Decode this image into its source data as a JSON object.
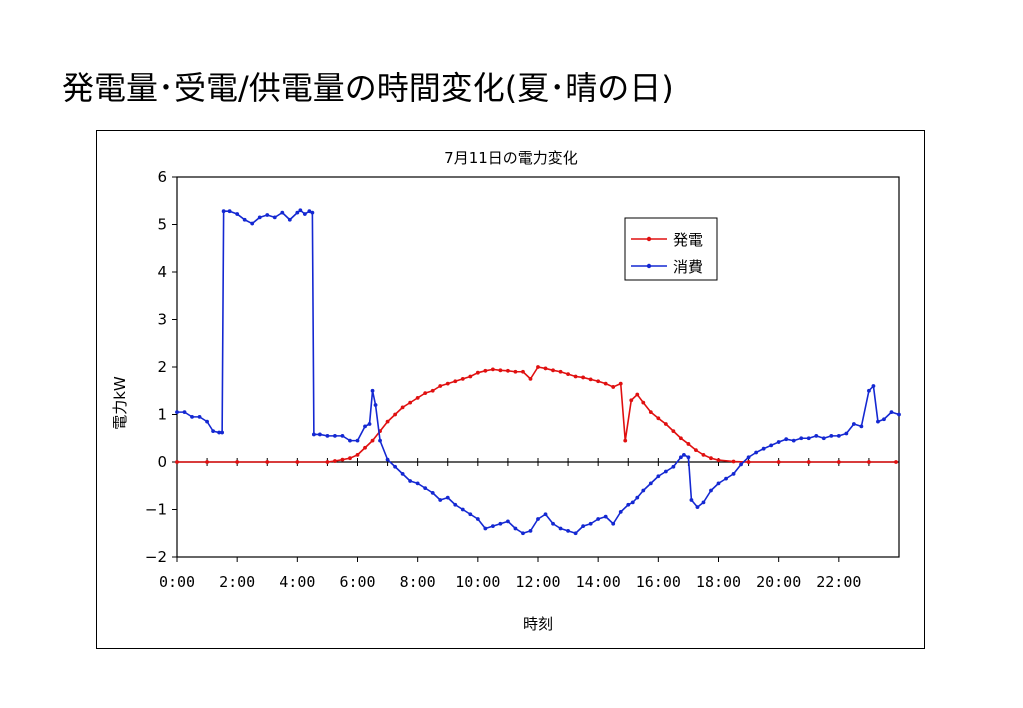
{
  "slide": {
    "title": "発電量･受電/供電量の時間変化(夏･晴の日)"
  },
  "chart_data": {
    "type": "line",
    "title": "7月11日の電力変化",
    "xlabel": "時刻",
    "ylabel": "電力kW",
    "xlim": [
      0,
      24
    ],
    "ylim": [
      -2,
      6
    ],
    "yticks": [
      -2,
      -1,
      0,
      1,
      2,
      3,
      4,
      5,
      6
    ],
    "ytick_labels": [
      "−2",
      "−1",
      "0",
      "1",
      "2",
      "3",
      "4",
      "5",
      "6"
    ],
    "xtick_labels": [
      "0:00",
      "2:00",
      "4:00",
      "6:00",
      "8:00",
      "10:00",
      "12:00",
      "14:00",
      "16:00",
      "18:00",
      "20:00",
      "22:00"
    ],
    "x_unit": "hours",
    "legend_position": "top-right",
    "series": [
      {
        "name": "発電",
        "color": "#e01010",
        "points": [
          [
            0,
            0
          ],
          [
            1,
            0
          ],
          [
            2,
            0
          ],
          [
            3,
            0
          ],
          [
            4,
            0
          ],
          [
            5,
            0
          ],
          [
            5.25,
            0.02
          ],
          [
            5.5,
            0.05
          ],
          [
            5.75,
            0.08
          ],
          [
            6,
            0.15
          ],
          [
            6.25,
            0.3
          ],
          [
            6.5,
            0.45
          ],
          [
            6.75,
            0.65
          ],
          [
            7,
            0.85
          ],
          [
            7.25,
            1.0
          ],
          [
            7.5,
            1.15
          ],
          [
            7.75,
            1.25
          ],
          [
            8,
            1.35
          ],
          [
            8.25,
            1.45
          ],
          [
            8.5,
            1.5
          ],
          [
            8.75,
            1.6
          ],
          [
            9,
            1.65
          ],
          [
            9.25,
            1.7
          ],
          [
            9.5,
            1.75
          ],
          [
            9.75,
            1.8
          ],
          [
            10,
            1.88
          ],
          [
            10.25,
            1.92
          ],
          [
            10.5,
            1.95
          ],
          [
            10.75,
            1.93
          ],
          [
            11,
            1.92
          ],
          [
            11.25,
            1.9
          ],
          [
            11.5,
            1.9
          ],
          [
            11.75,
            1.75
          ],
          [
            12,
            2.0
          ],
          [
            12.25,
            1.97
          ],
          [
            12.5,
            1.93
          ],
          [
            12.75,
            1.9
          ],
          [
            13,
            1.85
          ],
          [
            13.25,
            1.8
          ],
          [
            13.5,
            1.78
          ],
          [
            13.75,
            1.74
          ],
          [
            14,
            1.7
          ],
          [
            14.25,
            1.65
          ],
          [
            14.5,
            1.58
          ],
          [
            14.75,
            1.65
          ],
          [
            14.9,
            0.45
          ],
          [
            15.1,
            1.3
          ],
          [
            15.3,
            1.42
          ],
          [
            15.5,
            1.25
          ],
          [
            15.75,
            1.05
          ],
          [
            16,
            0.92
          ],
          [
            16.25,
            0.8
          ],
          [
            16.5,
            0.65
          ],
          [
            16.75,
            0.5
          ],
          [
            17,
            0.38
          ],
          [
            17.25,
            0.25
          ],
          [
            17.5,
            0.15
          ],
          [
            17.75,
            0.08
          ],
          [
            18,
            0.04
          ],
          [
            18.5,
            0.01
          ],
          [
            19,
            0
          ],
          [
            20,
            0
          ],
          [
            21,
            0
          ],
          [
            22,
            0
          ],
          [
            23,
            0
          ],
          [
            23.9,
            0
          ]
        ]
      },
      {
        "name": "消費",
        "color": "#1428d2",
        "points": [
          [
            0,
            1.05
          ],
          [
            0.25,
            1.05
          ],
          [
            0.5,
            0.95
          ],
          [
            0.75,
            0.95
          ],
          [
            1,
            0.85
          ],
          [
            1.2,
            0.65
          ],
          [
            1.4,
            0.62
          ],
          [
            1.5,
            0.62
          ],
          [
            1.55,
            5.28
          ],
          [
            1.75,
            5.28
          ],
          [
            2,
            5.22
          ],
          [
            2.25,
            5.1
          ],
          [
            2.5,
            5.02
          ],
          [
            2.75,
            5.15
          ],
          [
            3,
            5.2
          ],
          [
            3.25,
            5.15
          ],
          [
            3.5,
            5.25
          ],
          [
            3.75,
            5.1
          ],
          [
            4,
            5.25
          ],
          [
            4.1,
            5.3
          ],
          [
            4.25,
            5.22
          ],
          [
            4.4,
            5.28
          ],
          [
            4.5,
            5.25
          ],
          [
            4.55,
            0.58
          ],
          [
            4.75,
            0.58
          ],
          [
            5,
            0.55
          ],
          [
            5.25,
            0.55
          ],
          [
            5.5,
            0.55
          ],
          [
            5.75,
            0.45
          ],
          [
            6,
            0.45
          ],
          [
            6.25,
            0.75
          ],
          [
            6.4,
            0.8
          ],
          [
            6.5,
            1.5
          ],
          [
            6.6,
            1.2
          ],
          [
            6.75,
            0.45
          ],
          [
            7,
            0.05
          ],
          [
            7.25,
            -0.1
          ],
          [
            7.5,
            -0.25
          ],
          [
            7.75,
            -0.4
          ],
          [
            8,
            -0.45
          ],
          [
            8.25,
            -0.55
          ],
          [
            8.5,
            -0.65
          ],
          [
            8.75,
            -0.8
          ],
          [
            9,
            -0.75
          ],
          [
            9.25,
            -0.9
          ],
          [
            9.5,
            -1.0
          ],
          [
            9.75,
            -1.1
          ],
          [
            10,
            -1.2
          ],
          [
            10.25,
            -1.4
          ],
          [
            10.5,
            -1.35
          ],
          [
            10.75,
            -1.3
          ],
          [
            11,
            -1.25
          ],
          [
            11.25,
            -1.4
          ],
          [
            11.5,
            -1.5
          ],
          [
            11.75,
            -1.45
          ],
          [
            12,
            -1.2
          ],
          [
            12.25,
            -1.1
          ],
          [
            12.5,
            -1.3
          ],
          [
            12.75,
            -1.4
          ],
          [
            13,
            -1.45
          ],
          [
            13.25,
            -1.5
          ],
          [
            13.5,
            -1.35
          ],
          [
            13.75,
            -1.3
          ],
          [
            14,
            -1.2
          ],
          [
            14.25,
            -1.15
          ],
          [
            14.5,
            -1.3
          ],
          [
            14.75,
            -1.05
          ],
          [
            15,
            -0.9
          ],
          [
            15.15,
            -0.85
          ],
          [
            15.3,
            -0.75
          ],
          [
            15.5,
            -0.6
          ],
          [
            15.75,
            -0.45
          ],
          [
            16,
            -0.3
          ],
          [
            16.25,
            -0.2
          ],
          [
            16.5,
            -0.1
          ],
          [
            16.75,
            0.1
          ],
          [
            16.85,
            0.15
          ],
          [
            17,
            0.1
          ],
          [
            17.1,
            -0.8
          ],
          [
            17.3,
            -0.95
          ],
          [
            17.5,
            -0.85
          ],
          [
            17.75,
            -0.6
          ],
          [
            18,
            -0.45
          ],
          [
            18.25,
            -0.35
          ],
          [
            18.5,
            -0.25
          ],
          [
            18.75,
            -0.05
          ],
          [
            19,
            0.1
          ],
          [
            19.25,
            0.2
          ],
          [
            19.5,
            0.28
          ],
          [
            19.75,
            0.35
          ],
          [
            20,
            0.42
          ],
          [
            20.25,
            0.48
          ],
          [
            20.5,
            0.45
          ],
          [
            20.75,
            0.5
          ],
          [
            21,
            0.5
          ],
          [
            21.25,
            0.55
          ],
          [
            21.5,
            0.5
          ],
          [
            21.75,
            0.55
          ],
          [
            22,
            0.55
          ],
          [
            22.25,
            0.6
          ],
          [
            22.5,
            0.8
          ],
          [
            22.75,
            0.75
          ],
          [
            23,
            1.5
          ],
          [
            23.15,
            1.6
          ],
          [
            23.3,
            0.85
          ],
          [
            23.5,
            0.9
          ],
          [
            23.75,
            1.05
          ],
          [
            24,
            1.0
          ]
        ]
      }
    ]
  }
}
